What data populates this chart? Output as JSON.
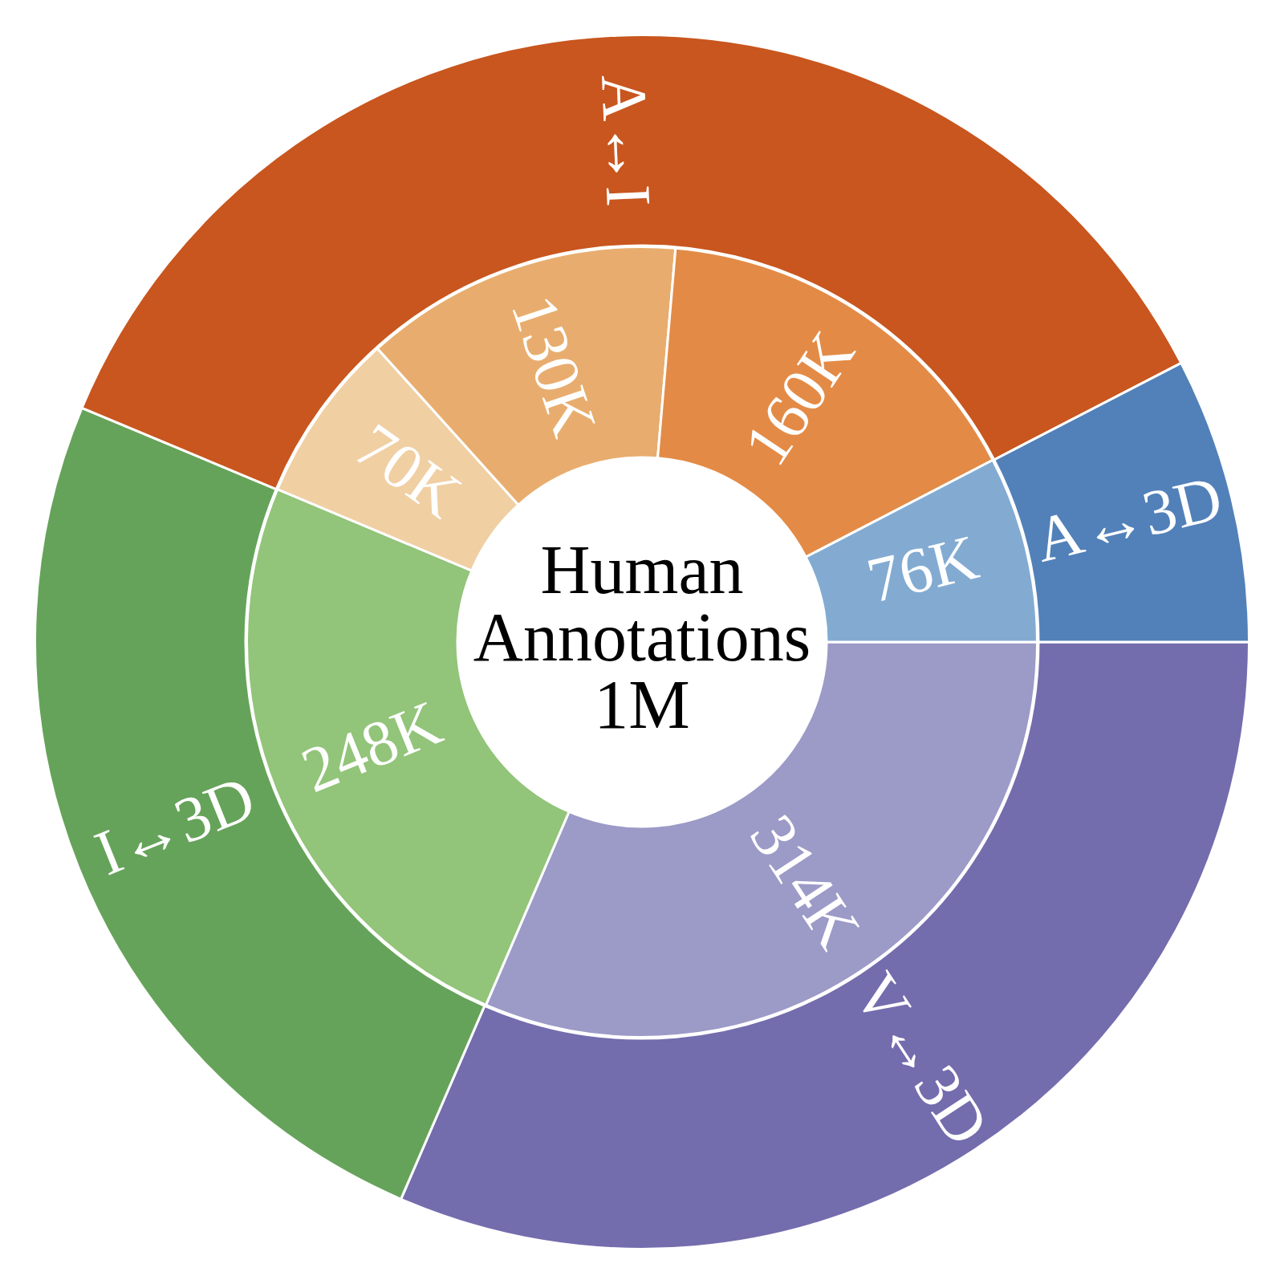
{
  "chart_data": [
    {
      "type": "donut",
      "categories": [
        "A↔3D",
        "A↔I",
        "I↔3D",
        "V↔3D"
      ],
      "values": [
        7.6,
        36.1,
        24.8,
        31.5
      ],
      "colors": [
        "#5281b9",
        "#c8561e",
        "#66a35a",
        "#736cad"
      ]
    },
    {
      "type": "donut",
      "title": "Human Annotations",
      "subtitle": "1M",
      "categories": [
        null,
        null,
        null,
        null,
        null,
        null
      ],
      "values": [
        76,
        160,
        130,
        70,
        248,
        314
      ],
      "colors": [
        "#83abd2",
        "#e38b46",
        "#e8ad6e",
        "#f0cfa3",
        "#92c47a",
        "#9c9ac7"
      ],
      "value_labels": [
        "76K",
        "160K",
        "130K",
        "70K",
        "248K",
        "314K"
      ]
    }
  ]
}
